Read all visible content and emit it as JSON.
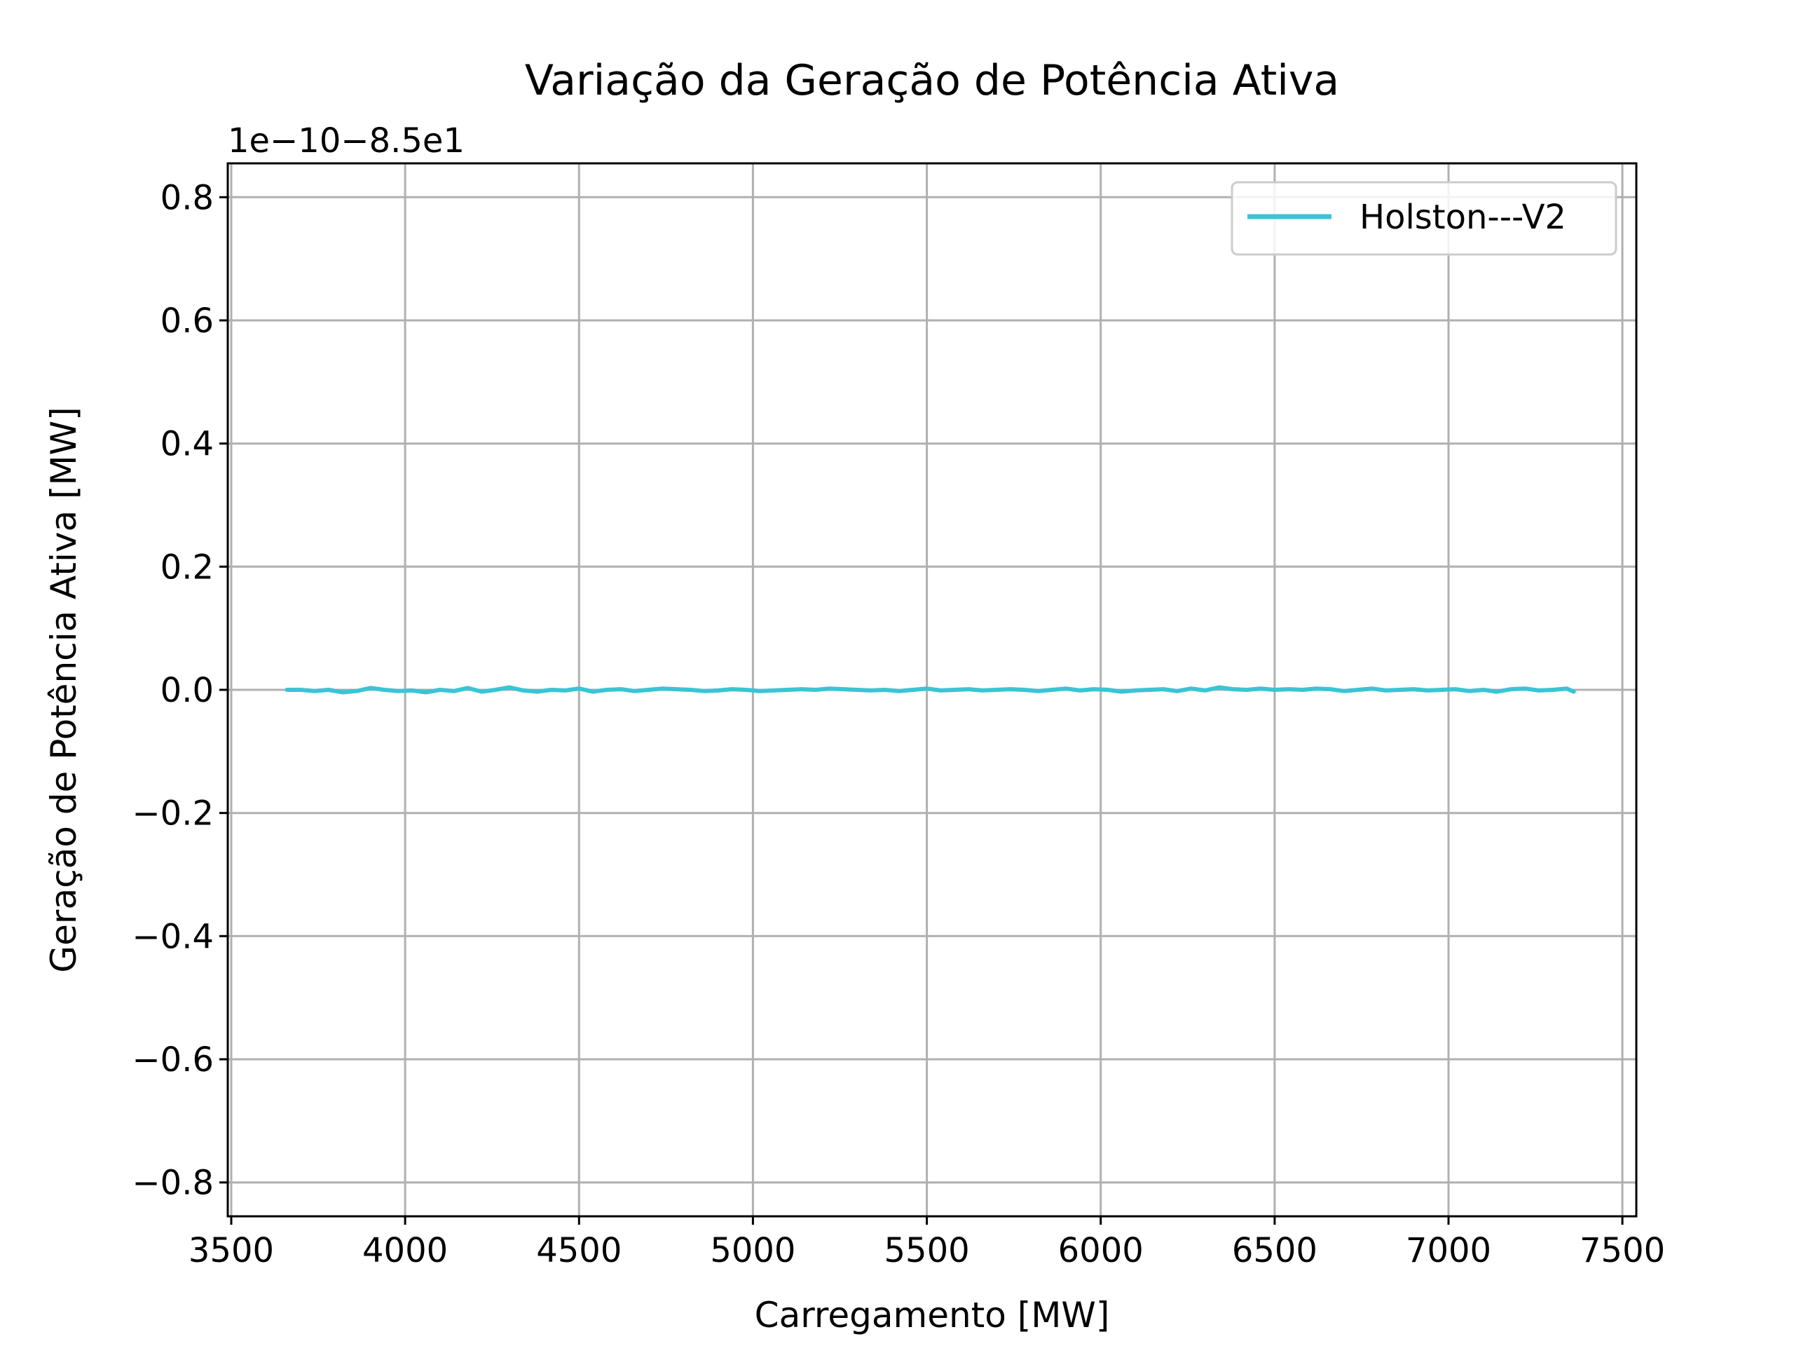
{
  "chart_data": {
    "type": "line",
    "title": "Variação da Geração de Potência Ativa",
    "xlabel": "Carregamento [MW]",
    "ylabel": "Geração de Potência Ativa [MW]",
    "offset_label": "1e−10−8.5e1",
    "xlim": [
      3490,
      7540
    ],
    "ylim": [
      -0.855,
      0.855
    ],
    "xticks": [
      3500,
      4000,
      4500,
      5000,
      5500,
      6000,
      6500,
      7000,
      7500
    ],
    "xtick_labels": [
      "3500",
      "4000",
      "4500",
      "5000",
      "5500",
      "6000",
      "6500",
      "7000",
      "7500"
    ],
    "yticks": [
      0.8,
      0.6,
      0.4,
      0.2,
      0.0,
      -0.2,
      -0.4,
      -0.6,
      -0.8
    ],
    "ytick_labels": [
      "0.8",
      "0.6",
      "0.4",
      "0.2",
      "0.0",
      "−0.2",
      "−0.4",
      "−0.6",
      "−0.8"
    ],
    "grid": true,
    "legend_position": "upper right",
    "series": [
      {
        "name": "Holston---V2",
        "color": "#3ac4d4",
        "x": [
          3660,
          3700,
          3740,
          3780,
          3820,
          3860,
          3900,
          3940,
          3980,
          4020,
          4060,
          4100,
          4140,
          4180,
          4220,
          4260,
          4300,
          4340,
          4380,
          4420,
          4460,
          4500,
          4540,
          4580,
          4620,
          4660,
          4700,
          4740,
          4780,
          4820,
          4860,
          4900,
          4940,
          4980,
          5020,
          5060,
          5100,
          5140,
          5180,
          5220,
          5260,
          5300,
          5340,
          5380,
          5420,
          5460,
          5500,
          5540,
          5580,
          5620,
          5660,
          5700,
          5740,
          5780,
          5820,
          5860,
          5900,
          5940,
          5980,
          6020,
          6060,
          6100,
          6140,
          6180,
          6220,
          6260,
          6300,
          6340,
          6380,
          6420,
          6460,
          6500,
          6540,
          6580,
          6620,
          6660,
          6700,
          6740,
          6780,
          6820,
          6860,
          6900,
          6940,
          6980,
          7020,
          7060,
          7100,
          7140,
          7180,
          7220,
          7260,
          7300,
          7340,
          7360
        ],
        "y": [
          0.0,
          0.0,
          -0.002,
          0.0,
          -0.004,
          -0.002,
          0.003,
          0.0,
          -0.002,
          -0.001,
          -0.004,
          0.0,
          -0.002,
          0.003,
          -0.003,
          0.0,
          0.004,
          -0.001,
          -0.003,
          0.0,
          -0.001,
          0.002,
          -0.003,
          0.0,
          0.001,
          -0.002,
          0.0,
          0.002,
          0.001,
          0.0,
          -0.002,
          -0.001,
          0.001,
          0.0,
          -0.002,
          -0.001,
          0.0,
          0.001,
          0.0,
          0.002,
          0.001,
          0.0,
          -0.001,
          0.0,
          -0.002,
          0.0,
          0.002,
          -0.001,
          0.0,
          0.001,
          -0.001,
          0.0,
          0.001,
          0.0,
          -0.002,
          0.0,
          0.002,
          -0.001,
          0.001,
          0.0,
          -0.003,
          -0.001,
          0.0,
          0.001,
          -0.002,
          0.002,
          -0.001,
          0.004,
          0.001,
          0.0,
          0.002,
          0.0,
          0.001,
          0.0,
          0.002,
          0.001,
          -0.002,
          0.0,
          0.002,
          -0.001,
          0.0,
          0.001,
          -0.001,
          0.0,
          0.001,
          -0.002,
          0.0,
          -0.003,
          0.001,
          0.002,
          -0.001,
          0.0,
          0.002,
          -0.003
        ]
      }
    ]
  }
}
